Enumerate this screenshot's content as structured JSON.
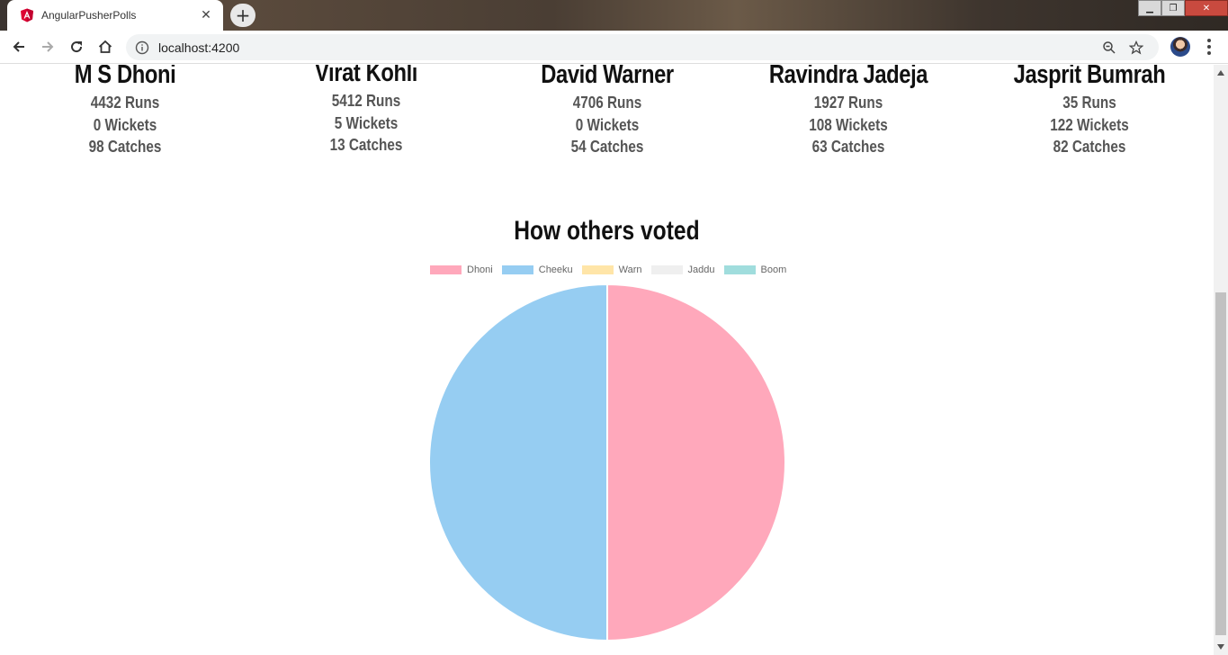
{
  "browser": {
    "tab_title": "AngularPusherPolls",
    "tab_close": "✕",
    "new_tab": "+",
    "url": "localhost:4200"
  },
  "players": [
    {
      "name": "M S Dhoni",
      "runs": "4432 Runs",
      "wickets": "0 Wickets",
      "catches": "98 Catches"
    },
    {
      "name": "Virat Kohli",
      "runs": "5412 Runs",
      "wickets": "5 Wickets",
      "catches": "13 Catches"
    },
    {
      "name": "David Warner",
      "runs": "4706 Runs",
      "wickets": "0 Wickets",
      "catches": "54 Catches"
    },
    {
      "name": "Ravindra Jadeja",
      "runs": "1927 Runs",
      "wickets": "108 Wickets",
      "catches": "63 Catches"
    },
    {
      "name": "Jasprit Bumrah",
      "runs": "35 Runs",
      "wickets": "122 Wickets",
      "catches": "82 Catches"
    }
  ],
  "chart_title": "How others voted",
  "chart_data": {
    "type": "pie",
    "title": "How others voted",
    "categories": [
      "Dhoni",
      "Cheeku",
      "Warn",
      "Jaddu",
      "Boom"
    ],
    "values": [
      1,
      1,
      0,
      0,
      0
    ],
    "colors": [
      "#ffa8bb",
      "#96cdf2",
      "#ffe5a8",
      "#efefef",
      "#a0dddd"
    ],
    "legend": "top"
  }
}
